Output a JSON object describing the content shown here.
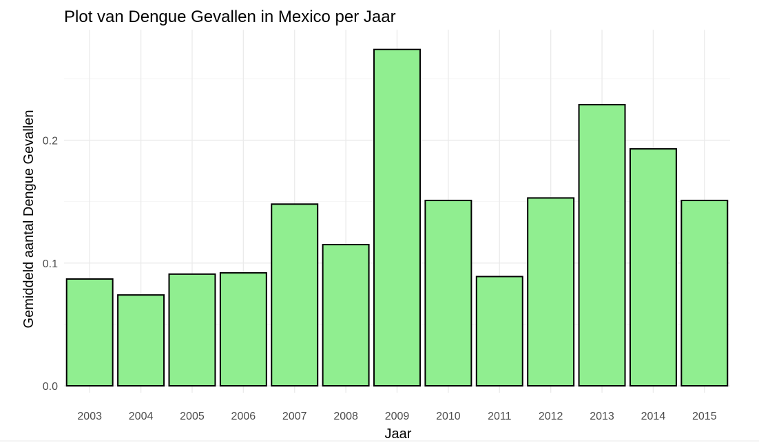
{
  "chart_data": {
    "type": "bar",
    "title": "Plot van Dengue Gevallen in Mexico per Jaar",
    "xlabel": "Jaar",
    "ylabel": "Gemiddeld aantal Dengue Gevallen",
    "categories": [
      "2003",
      "2004",
      "2005",
      "2006",
      "2007",
      "2008",
      "2009",
      "2010",
      "2011",
      "2012",
      "2013",
      "2014",
      "2015"
    ],
    "values": [
      0.087,
      0.074,
      0.091,
      0.092,
      0.148,
      0.115,
      0.274,
      0.151,
      0.089,
      0.153,
      0.229,
      0.193,
      0.151
    ],
    "yticks": [
      0.0,
      0.1,
      0.2
    ],
    "ytick_labels": [
      "0.0",
      "0.1",
      "0.2"
    ],
    "ylim": [
      0,
      0.29
    ],
    "grid": true,
    "bar_fill": "#90ee90",
    "bar_stroke": "#000000",
    "legend": "none"
  }
}
